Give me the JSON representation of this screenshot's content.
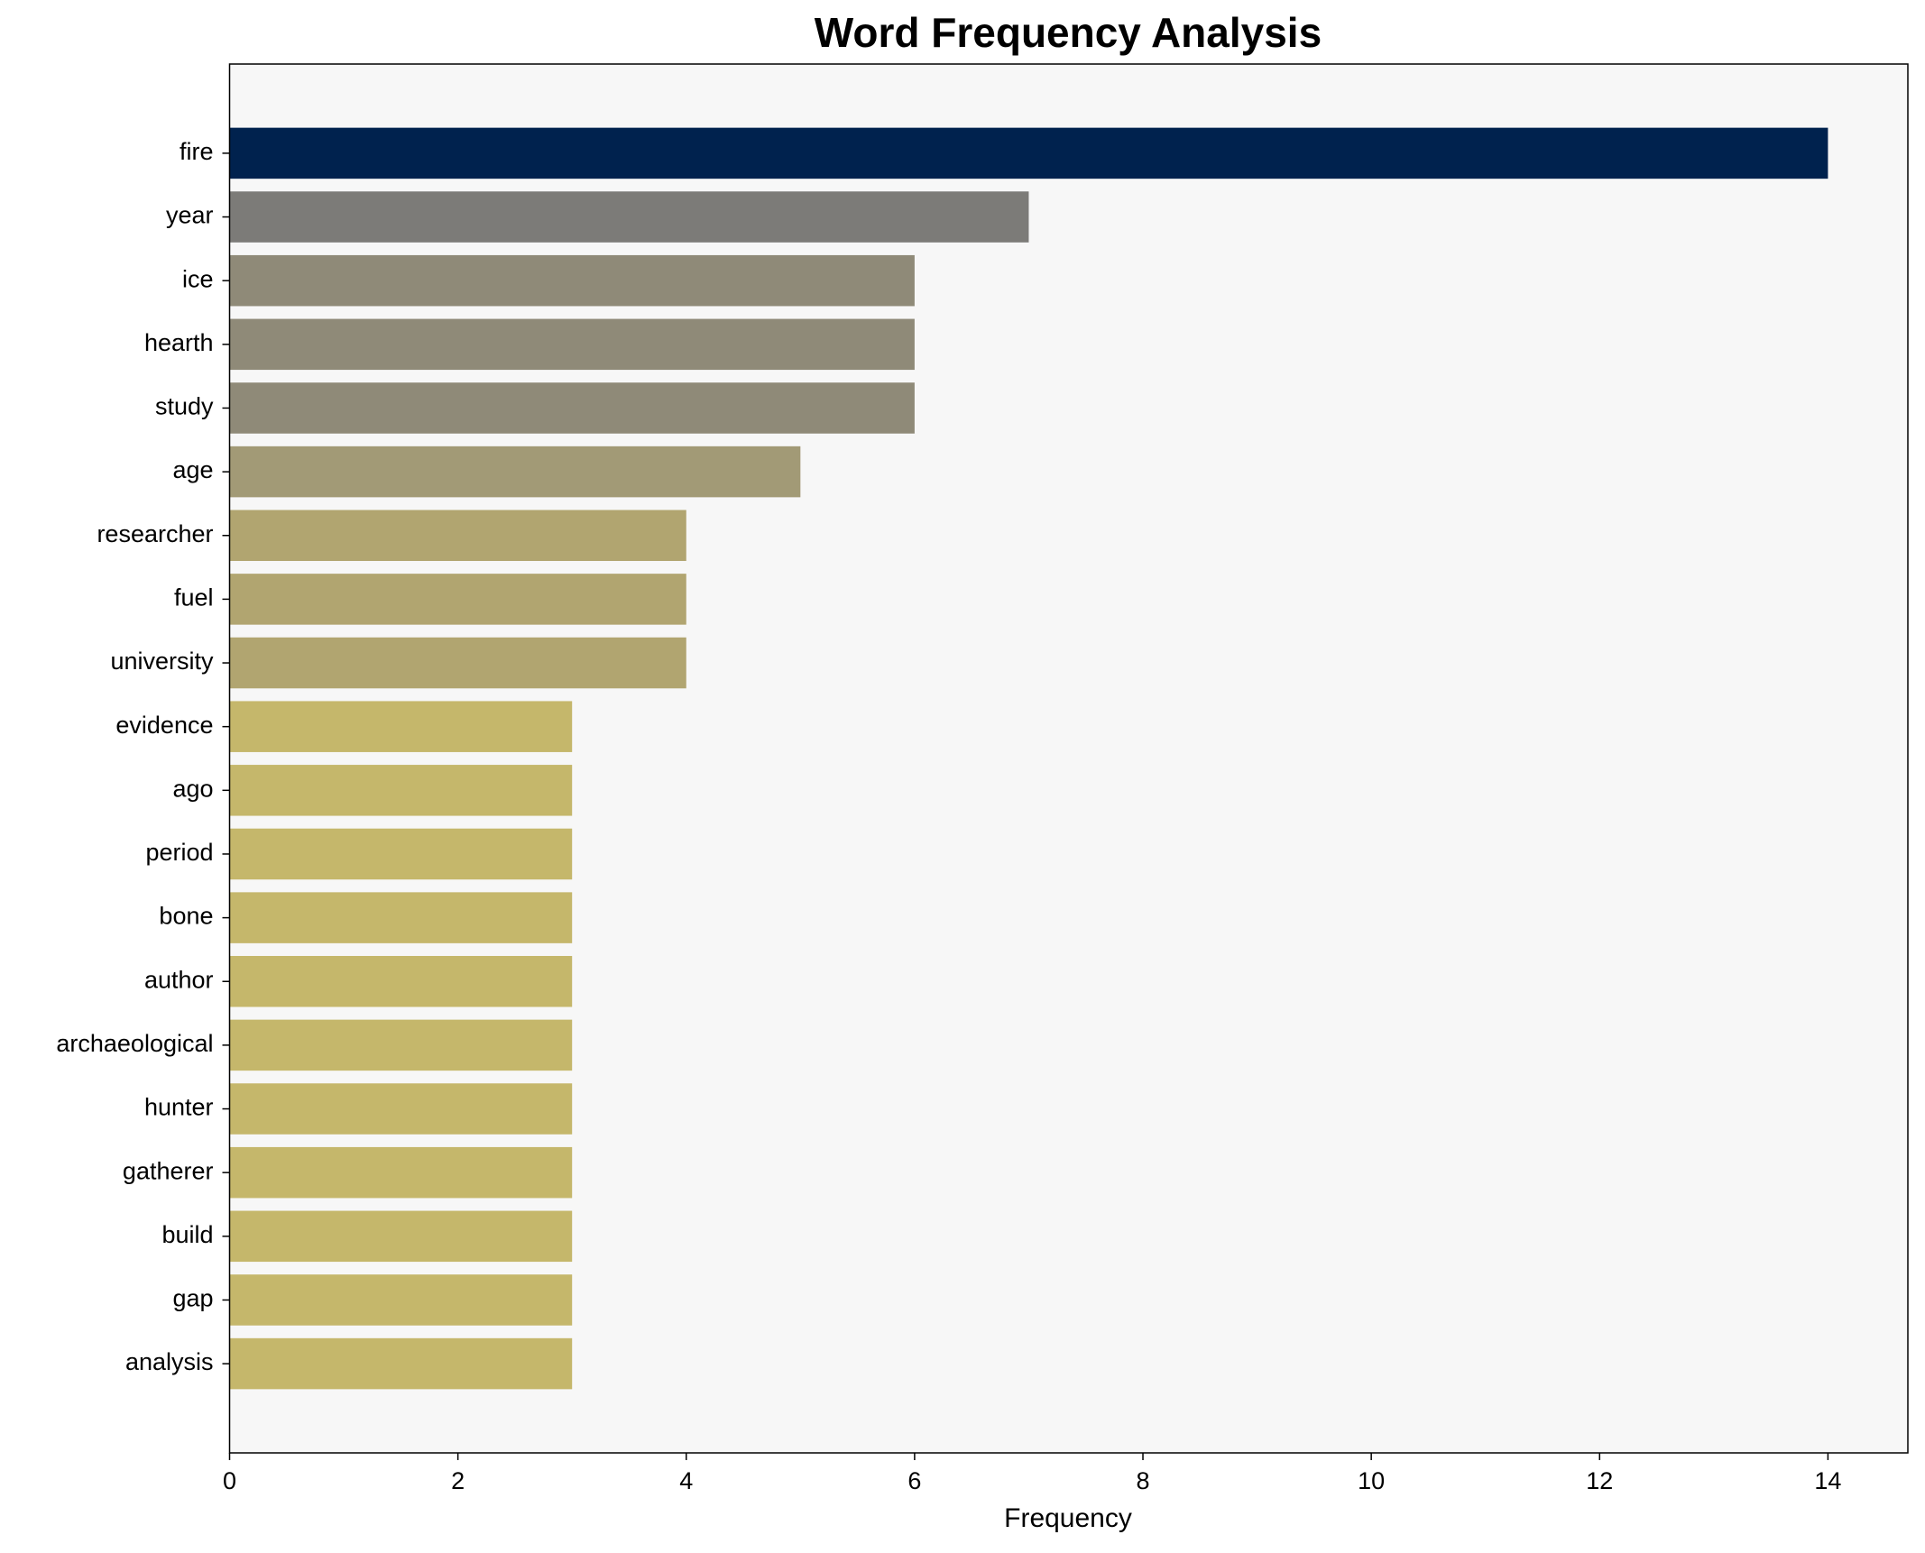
{
  "chart_data": {
    "type": "barh",
    "title": "Word Frequency Analysis",
    "xlabel": "Frequency",
    "categories": [
      "fire",
      "year",
      "ice",
      "hearth",
      "study",
      "age",
      "researcher",
      "fuel",
      "university",
      "evidence",
      "ago",
      "period",
      "bone",
      "author",
      "archaeological",
      "hunter",
      "gatherer",
      "build",
      "gap",
      "analysis"
    ],
    "values": [
      14,
      7,
      6,
      6,
      6,
      5,
      4,
      4,
      4,
      3,
      3,
      3,
      3,
      3,
      3,
      3,
      3,
      3,
      3,
      3
    ],
    "colors": [
      "#00224e",
      "#7c7b78",
      "#8f8a78",
      "#8f8a78",
      "#8f8a78",
      "#a29a76",
      "#b1a570",
      "#b1a570",
      "#b1a570",
      "#c5b76b",
      "#c5b76b",
      "#c5b76b",
      "#c5b76b",
      "#c5b76b",
      "#c5b76b",
      "#c5b76b",
      "#c5b76b",
      "#c5b76b",
      "#c5b76b",
      "#c5b76b"
    ],
    "xlim": [
      0,
      14.7
    ],
    "xticks": [
      0,
      2,
      4,
      6,
      8,
      10,
      12,
      14
    ],
    "grid": false
  }
}
